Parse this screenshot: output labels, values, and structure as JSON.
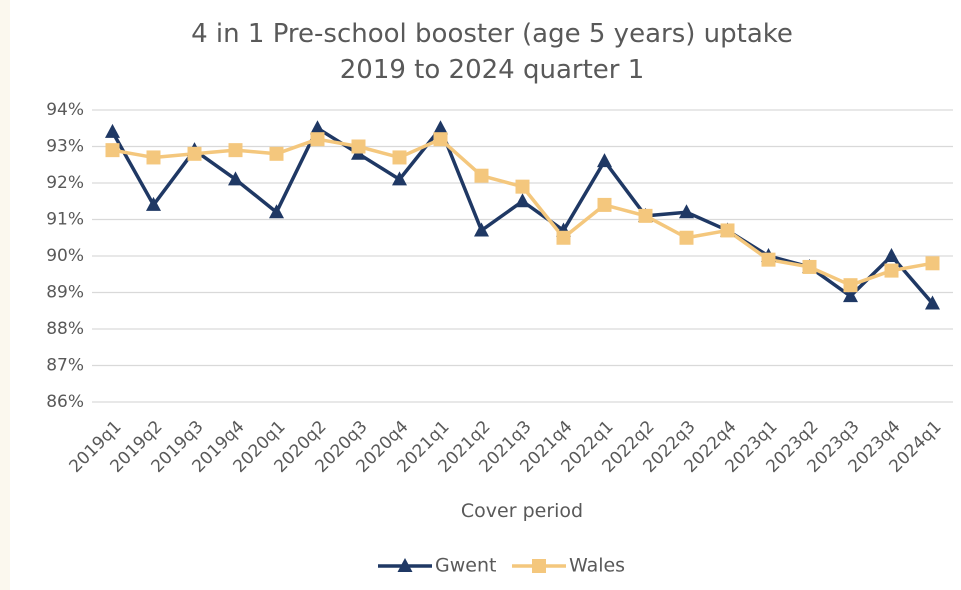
{
  "chart_data": {
    "type": "line",
    "title": "4 in 1 Pre-school booster (age 5 years) uptake",
    "subtitle": "2019 to 2024 quarter 1",
    "x_label": "Cover period",
    "categories": [
      "2019q1",
      "2019q2",
      "2019q3",
      "2019q4",
      "2020q1",
      "2020q2",
      "2020q3",
      "2020q4",
      "2021q1",
      "2021q2",
      "2021q3",
      "2021q4",
      "2022q1",
      "2022q2",
      "2022q3",
      "2022q4",
      "2023q1",
      "2023q2",
      "2023q3",
      "2023q4",
      "2024q1"
    ],
    "series": [
      {
        "name": "Gwent",
        "color": "#1f3864",
        "marker": "triangle",
        "values": [
          93.4,
          91.4,
          92.9,
          92.1,
          91.2,
          93.5,
          92.8,
          92.1,
          93.5,
          90.7,
          91.5,
          90.7,
          92.6,
          91.1,
          91.2,
          90.7,
          90.0,
          89.7,
          88.9,
          90.0,
          88.7
        ]
      },
      {
        "name": "Wales",
        "color": "#f4c77d",
        "marker": "square",
        "values": [
          92.9,
          92.7,
          92.8,
          92.9,
          92.8,
          93.2,
          93.0,
          92.7,
          93.2,
          92.2,
          91.9,
          90.5,
          91.4,
          91.1,
          90.5,
          90.7,
          89.9,
          89.7,
          89.2,
          89.6,
          89.8
        ]
      }
    ],
    "ylim": [
      86,
      94
    ],
    "yticks": [
      {
        "value": 86,
        "label": "86%"
      },
      {
        "value": 87,
        "label": "87%"
      },
      {
        "value": 88,
        "label": "88%"
      },
      {
        "value": 89,
        "label": "89%"
      },
      {
        "value": 90,
        "label": "90%"
      },
      {
        "value": 91,
        "label": "91%"
      },
      {
        "value": 92,
        "label": "92%"
      },
      {
        "value": 93,
        "label": "93%"
      },
      {
        "value": 94,
        "label": "94%"
      }
    ],
    "grid": true,
    "legend": "bottom"
  }
}
